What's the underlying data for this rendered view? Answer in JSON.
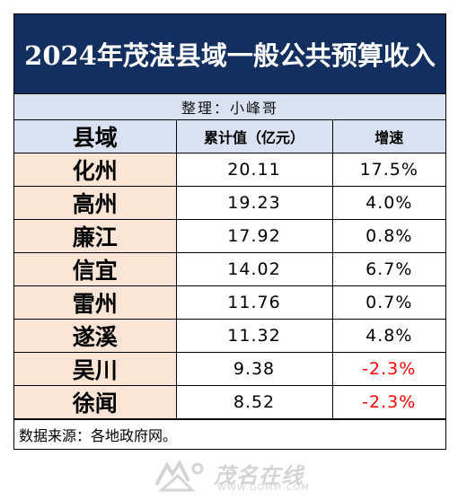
{
  "title": "2024年茂湛县域一般公共预算收入",
  "credit": "整理：小峰哥",
  "columns": {
    "region": "县域",
    "value": "累计值（亿元）",
    "growth": "增速"
  },
  "rows": [
    {
      "region": "化州",
      "value": "20.11",
      "growth": "17.5%",
      "negative": false
    },
    {
      "region": "高州",
      "value": "19.23",
      "growth": "4.0%",
      "negative": false
    },
    {
      "region": "廉江",
      "value": "17.92",
      "growth": "0.8%",
      "negative": false
    },
    {
      "region": "信宜",
      "value": "14.02",
      "growth": "6.7%",
      "negative": false
    },
    {
      "region": "雷州",
      "value": "11.76",
      "growth": "0.7%",
      "negative": false
    },
    {
      "region": "遂溪",
      "value": "11.32",
      "growth": "4.8%",
      "negative": false
    },
    {
      "region": "吴川",
      "value": "9.38",
      "growth": "-2.3%",
      "negative": true
    },
    {
      "region": "徐闻",
      "value": "8.52",
      "growth": "-2.3%",
      "negative": true
    }
  ],
  "source": "数据来源：各地政府网。",
  "watermark": {
    "brand": "茂名在线",
    "url": "WWW.GDMM.COM"
  },
  "colors": {
    "title_bg": "#132f5f",
    "header_bg": "#d9e2f3",
    "region_bg": "#fbe5d6",
    "negative": "#ff0000"
  }
}
